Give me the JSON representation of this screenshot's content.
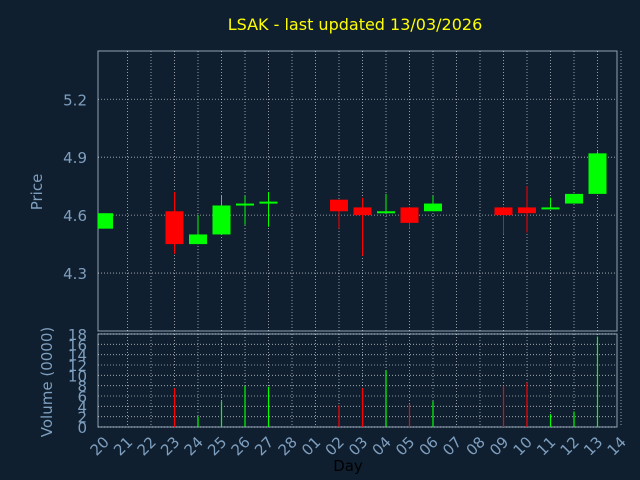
{
  "chart_data": [
    {
      "type": "candlestick",
      "title": "LSAK - last updated 13/03/2026",
      "ylabel": "Price",
      "ylim": [
        4.0,
        5.45
      ],
      "yticks": [
        4.3,
        4.6,
        4.9,
        5.2
      ],
      "grid": true,
      "categories": [
        "20",
        "21",
        "22",
        "23",
        "24",
        "25",
        "26",
        "27",
        "28",
        "01",
        "02",
        "03",
        "04",
        "05",
        "06",
        "07",
        "08",
        "09",
        "10",
        "11",
        "12",
        "13",
        "14"
      ],
      "candles": [
        {
          "day": "20",
          "open": 4.53,
          "close": 4.61,
          "high": 4.61,
          "low": 4.53
        },
        {
          "day": "23",
          "open": 4.62,
          "close": 4.45,
          "high": 4.72,
          "low": 4.4
        },
        {
          "day": "24",
          "open": 4.45,
          "close": 4.5,
          "high": 4.6,
          "low": 4.45
        },
        {
          "day": "25",
          "open": 4.5,
          "close": 4.65,
          "high": 4.7,
          "low": 4.5
        },
        {
          "day": "26",
          "open": 4.65,
          "close": 4.66,
          "high": 4.7,
          "low": 4.55
        },
        {
          "day": "27",
          "open": 4.66,
          "close": 4.67,
          "high": 4.72,
          "low": 4.54
        },
        {
          "day": "02",
          "open": 4.68,
          "close": 4.62,
          "high": 4.68,
          "low": 4.53
        },
        {
          "day": "03",
          "open": 4.64,
          "close": 4.6,
          "high": 4.69,
          "low": 4.39
        },
        {
          "day": "04",
          "open": 4.61,
          "close": 4.62,
          "high": 4.71,
          "low": 4.61
        },
        {
          "day": "05",
          "open": 4.64,
          "close": 4.56,
          "high": 4.64,
          "low": 4.53
        },
        {
          "day": "06",
          "open": 4.62,
          "close": 4.66,
          "high": 4.7,
          "low": 4.62
        },
        {
          "day": "09",
          "open": 4.64,
          "close": 4.6,
          "high": 4.64,
          "low": 4.5
        },
        {
          "day": "10",
          "open": 4.64,
          "close": 4.61,
          "high": 4.75,
          "low": 4.51
        },
        {
          "day": "11",
          "open": 4.63,
          "close": 4.64,
          "high": 4.69,
          "low": 4.63
        },
        {
          "day": "12",
          "open": 4.66,
          "close": 4.71,
          "high": 4.71,
          "low": 4.66
        },
        {
          "day": "13",
          "open": 4.71,
          "close": 4.92,
          "high": 4.93,
          "low": 4.71
        }
      ]
    },
    {
      "type": "bar",
      "ylabel": "Volume (0000)",
      "xlabel": "Day",
      "ylim": [
        0,
        18
      ],
      "yticks": [
        0,
        2,
        4,
        6,
        8,
        10,
        12,
        14,
        16,
        18
      ],
      "grid": true,
      "categories": [
        "20",
        "21",
        "22",
        "23",
        "24",
        "25",
        "26",
        "27",
        "28",
        "01",
        "02",
        "03",
        "04",
        "05",
        "06",
        "07",
        "08",
        "09",
        "10",
        "11",
        "12",
        "13",
        "14"
      ],
      "volumes": [
        {
          "day": "23",
          "value": 7.5,
          "direction": "down"
        },
        {
          "day": "24",
          "value": 2.0,
          "direction": "up"
        },
        {
          "day": "25",
          "value": 5.0,
          "direction": "up"
        },
        {
          "day": "26",
          "value": 8.0,
          "direction": "up"
        },
        {
          "day": "27",
          "value": 7.8,
          "direction": "up"
        },
        {
          "day": "02",
          "value": 4.2,
          "direction": "down"
        },
        {
          "day": "03",
          "value": 7.5,
          "direction": "down"
        },
        {
          "day": "04",
          "value": 11.0,
          "direction": "up"
        },
        {
          "day": "05",
          "value": 4.5,
          "direction": "down"
        },
        {
          "day": "06",
          "value": 5.0,
          "direction": "up"
        },
        {
          "day": "09",
          "value": 8.0,
          "direction": "down"
        },
        {
          "day": "10",
          "value": 8.6,
          "direction": "down"
        },
        {
          "day": "11",
          "value": 2.5,
          "direction": "up"
        },
        {
          "day": "12",
          "value": 3.0,
          "direction": "up"
        },
        {
          "day": "13",
          "value": 17.5,
          "direction": "up"
        }
      ]
    }
  ],
  "colors": {
    "background": "#0f1f2f",
    "title": "#ffff00",
    "axis_text": "#7f9fbf",
    "xlabel": "#000000",
    "up": "#00ff00",
    "down": "#ff0000",
    "grid": "#ffffff",
    "frame": "#8ca0b4"
  }
}
